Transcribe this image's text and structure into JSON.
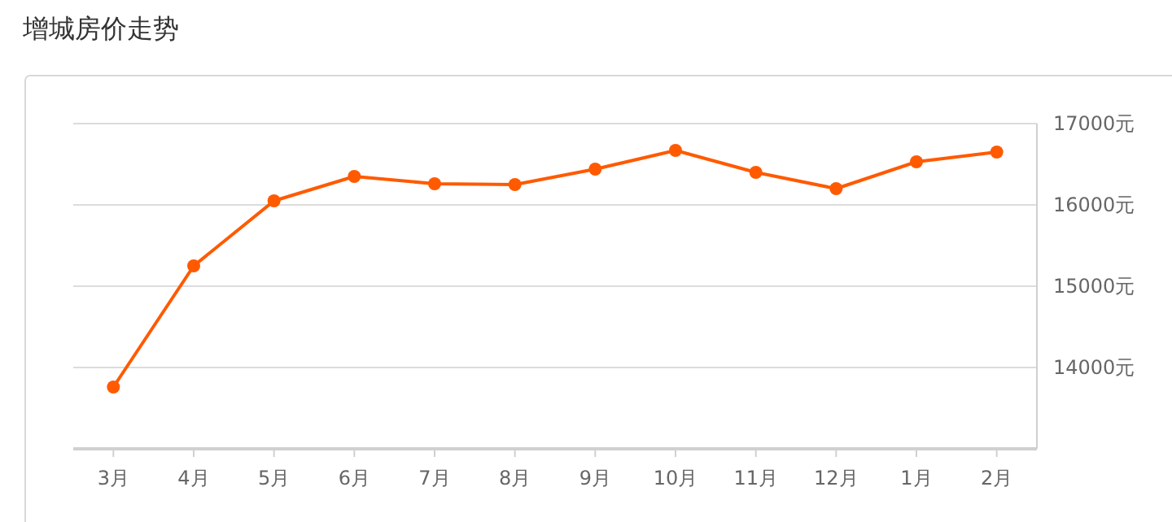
{
  "chart_data": {
    "type": "line",
    "title": "增城房价走势",
    "categories": [
      "3月",
      "4月",
      "5月",
      "6月",
      "7月",
      "8月",
      "9月",
      "10月",
      "11月",
      "12月",
      "1月",
      "2月"
    ],
    "series": [
      {
        "color": "#ff5a00",
        "values": [
          13760,
          15250,
          16050,
          16350,
          16260,
          16250,
          16440,
          16670,
          16400,
          16200,
          16530,
          16650
        ]
      }
    ],
    "ylim": [
      13000,
      17000
    ],
    "yticks": [
      {
        "value": 13000,
        "label": null
      },
      {
        "value": 14000,
        "label": "14000元"
      },
      {
        "value": 15000,
        "label": "15000元"
      },
      {
        "value": 16000,
        "label": "16000元"
      },
      {
        "value": 17000,
        "label": "17000元"
      }
    ],
    "grid": "y",
    "marker": "circle",
    "line_style": "solid"
  }
}
